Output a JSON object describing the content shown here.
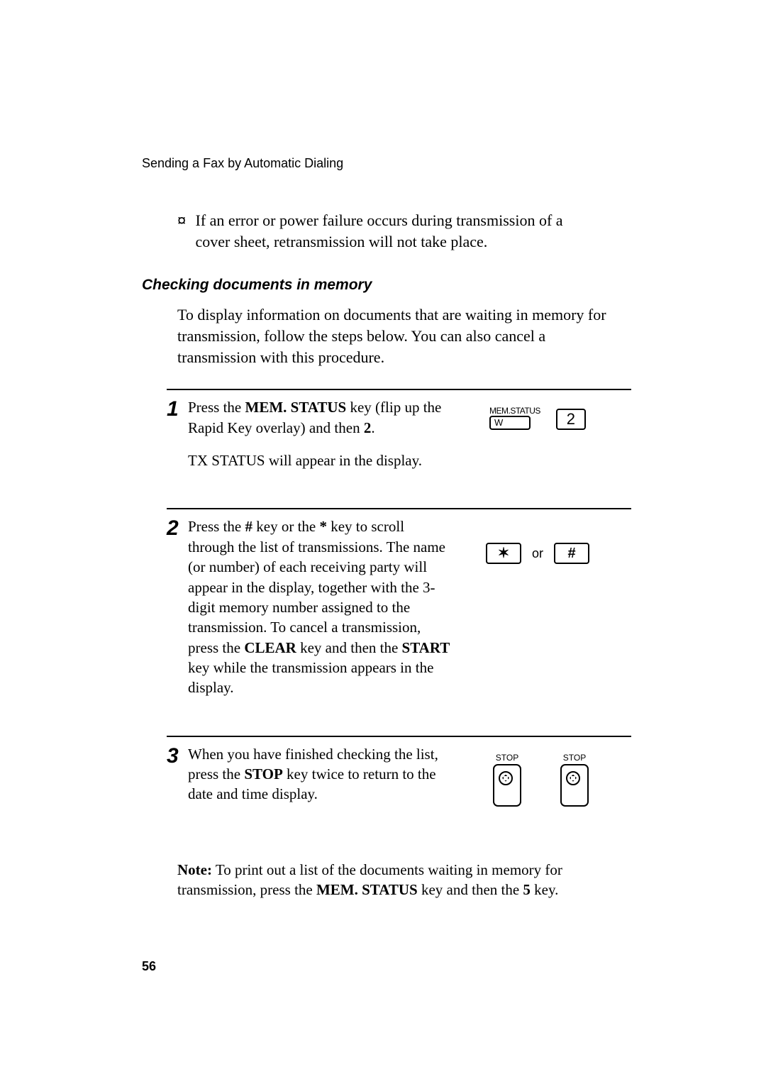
{
  "header": "Sending a Fax by Automatic Dialing",
  "bullet_symbol": "¤",
  "bullet_note": "If an error or power failure occurs during transmission of a cover sheet, retransmission will not take place.",
  "section_heading": "Checking documents in memory",
  "intro": "To display information on documents that are waiting in memory for transmission, follow the steps below. You can also cancel a transmission with this procedure.",
  "steps": {
    "s1": {
      "num": "1",
      "p1_a": "Press the ",
      "p1_b": "MEM. STATUS",
      "p1_c": " key (flip up the Rapid Key overlay) and then ",
      "p1_d": "2",
      "p1_e": ".",
      "p2": "TX STATUS will appear in the display.",
      "mem_label": "MEM.STATUS",
      "mem_key_letter": "W",
      "num_key": "2"
    },
    "s2": {
      "num": "2",
      "p1_a": "Press the ",
      "p1_b": "#",
      "p1_c": " key or the ",
      "p1_d": "*",
      "p1_e": "   key to scroll through the list of transmissions. The name (or number) of each receiving party will appear in the display, together with the 3-digit memory number assigned to the transmission. To cancel a transmission, press the ",
      "p1_f": "CLEAR",
      "p1_g": " key and then the ",
      "p1_h": "START",
      "p1_i": " key while the transmission appears in the display.",
      "star_key": "✶",
      "or_text": "or",
      "hash_key": "#"
    },
    "s3": {
      "num": "3",
      "p1_a": "When you have finished checking the list, press the ",
      "p1_b": "STOP",
      "p1_c": " key twice to return to the date and time display.",
      "stop_label": "STOP"
    }
  },
  "footnote_a": "Note:",
  "footnote_b": " To print out a list of the documents waiting in memory for transmission, press the ",
  "footnote_c": "MEM. STATUS",
  "footnote_d": " key and then the ",
  "footnote_e": "5",
  "footnote_f": " key.",
  "page_num": "56"
}
